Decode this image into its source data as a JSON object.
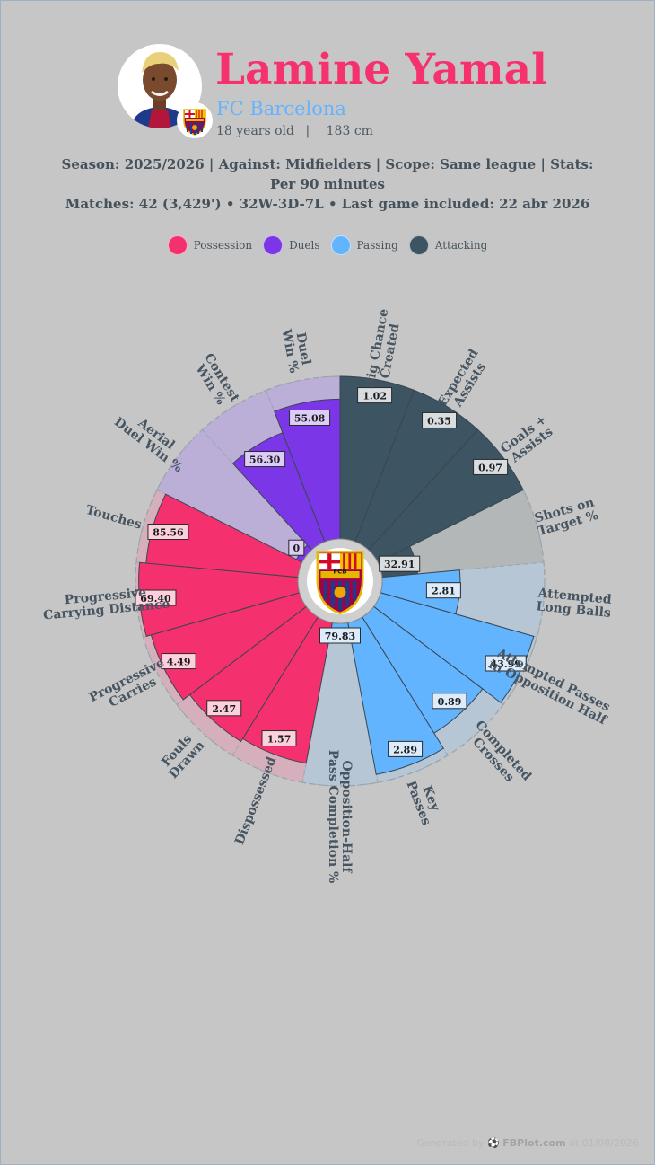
{
  "player": {
    "name": "Lamine Yamal",
    "club": "FC Barcelona",
    "age": "18 years old",
    "separator": "|",
    "height": "183 cm"
  },
  "context": {
    "line1": "Season: 2025/2026 | Against: Midfielders | Scope: Same league | Stats: Per 90 minutes",
    "line2": "Matches: 42 (3,429') • 32W-3D-7L • Last game included: 22 abr 2026"
  },
  "legend": [
    {
      "label": "Possession",
      "color": "#f5306e"
    },
    {
      "label": "Duels",
      "color": "#7b36e8"
    },
    {
      "label": "Passing",
      "color": "#63b4ff"
    },
    {
      "label": "Attacking",
      "color": "#3d5463"
    }
  ],
  "crest": {
    "label": "FCB",
    "icon": "club-crest-icon"
  },
  "chart_data": {
    "type": "radial_bar",
    "categories": [
      "Big Chance Created",
      "Expected Assists",
      "Goals + Assists",
      "Shots on Target %",
      "Attempted Long Balls",
      "Attempted Passes in Opposition Half",
      "Completed Crosses",
      "Key Passes",
      "Opposition-Half Pass Completion %",
      "Dispossessed",
      "Fouls Drawn",
      "Progressive Carries",
      "Progressive Carrying Distance",
      "Touches",
      "Aerial Duel Win %",
      "Contest Win %",
      "Duel Win %"
    ],
    "groups": [
      "Attacking",
      "Attacking",
      "Attacking",
      "Attacking",
      "Passing",
      "Passing",
      "Passing",
      "Passing",
      "Passing",
      "Possession",
      "Possession",
      "Possession",
      "Possession",
      "Possession",
      "Duels",
      "Duels",
      "Duels"
    ],
    "values": [
      "1.02",
      "0.35",
      "0.97",
      "32.91",
      "2.81",
      "43.99",
      "0.89",
      "2.89",
      "79.83",
      "1.57",
      "2.47",
      "4.49",
      "69.40",
      "85.56",
      "0",
      "56.30",
      "55.08"
    ],
    "percentiles": [
      100,
      100,
      100,
      22,
      48,
      98,
      84,
      95,
      12,
      88,
      90,
      95,
      98,
      94,
      4,
      72,
      86
    ],
    "colors": {
      "Attacking": "#3d5463",
      "Passing": "#63b4ff",
      "Possession": "#f5306e",
      "Duels": "#7b36e8",
      "Attacking_bg": "#b3b7b8",
      "Passing_bg": "#b6c6d4",
      "Possession_bg": "#d5b0bc",
      "Duels_bg": "#bbaed7",
      "Attacking_label_bg": "#d9dde0",
      "Passing_label_bg": "#dcecfb",
      "Possession_label_bg": "#fcd0dd",
      "Duels_label_bg": "#dccdf7"
    }
  },
  "footer": {
    "prefix": "Generated by",
    "brand": "FBPlot.com",
    "suffix": "at 01/08/2026"
  }
}
